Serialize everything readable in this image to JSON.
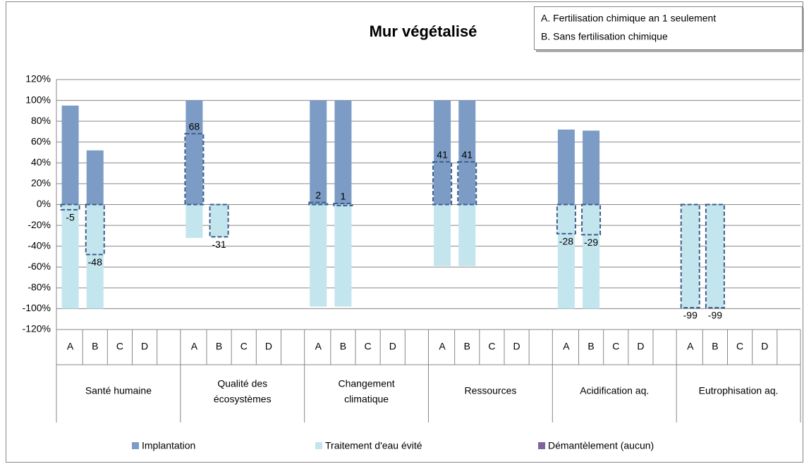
{
  "chart_data": {
    "type": "bar",
    "title": "Mur végétalisé",
    "annotations": [
      "A. Fertilisation chimique an 1 seulement",
      "B.  Sans fertilisation chimique"
    ],
    "categories": [
      "A",
      "B",
      "C",
      "D",
      "A",
      "B",
      "C",
      "D",
      "A",
      "B",
      "C",
      "D",
      "A",
      "B",
      "C",
      "D",
      "A",
      "B",
      "C",
      "D",
      "A",
      "B",
      "C",
      "D"
    ],
    "groups": [
      [
        "Santé humaine"
      ],
      [
        "Qualité des",
        "écosystèmes"
      ],
      [
        "Changement",
        "climatique"
      ],
      [
        "Ressources"
      ],
      [
        "Acidification aq."
      ],
      [
        "Eutrophisation aq."
      ]
    ],
    "series": [
      {
        "name": "Implantation",
        "color": "#7c9cc5",
        "values": [
          95,
          52,
          null,
          null,
          100,
          null,
          null,
          null,
          100,
          100,
          null,
          null,
          100,
          100,
          null,
          null,
          72,
          71,
          null,
          null,
          null,
          null,
          null,
          null
        ]
      },
      {
        "name": "Traitement d'eau évité",
        "color": "#c3e5ee",
        "values": [
          -100,
          -100,
          null,
          null,
          -32,
          -31,
          null,
          null,
          -98,
          -98,
          null,
          null,
          -59,
          -59,
          null,
          null,
          -100,
          -100,
          null,
          null,
          -99,
          -99,
          null,
          null
        ]
      },
      {
        "name": "Démantèlement (aucun)",
        "color": "#8064a2",
        "values": [
          null,
          null,
          null,
          null,
          null,
          null,
          null,
          null,
          null,
          null,
          null,
          null,
          null,
          null,
          null,
          null,
          null,
          null,
          null,
          null,
          null,
          null,
          null,
          null
        ]
      }
    ],
    "net_values": [
      -5,
      -48,
      null,
      null,
      68,
      -31,
      null,
      null,
      2,
      1,
      null,
      null,
      41,
      41,
      null,
      null,
      -28,
      -29,
      null,
      null,
      -99,
      -99,
      null,
      null
    ],
    "net_color": "#3c5f8c",
    "ylim": [
      -120,
      120
    ],
    "yticks": [
      {
        "value": -120,
        "label": "-120%"
      },
      {
        "value": -100,
        "label": "-100%"
      },
      {
        "value": -80,
        "label": "-80%"
      },
      {
        "value": -60,
        "label": "-60%"
      },
      {
        "value": -40,
        "label": "-40%"
      },
      {
        "value": -20,
        "label": "-20%"
      },
      {
        "value": 0,
        "label": "0%"
      },
      {
        "value": 20,
        "label": "20%"
      },
      {
        "value": 40,
        "label": "40%"
      },
      {
        "value": 60,
        "label": "60%"
      },
      {
        "value": 80,
        "label": "80%"
      },
      {
        "value": 100,
        "label": "100%"
      },
      {
        "value": 120,
        "label": "120%"
      }
    ],
    "grid": true,
    "legend": "bottom"
  }
}
